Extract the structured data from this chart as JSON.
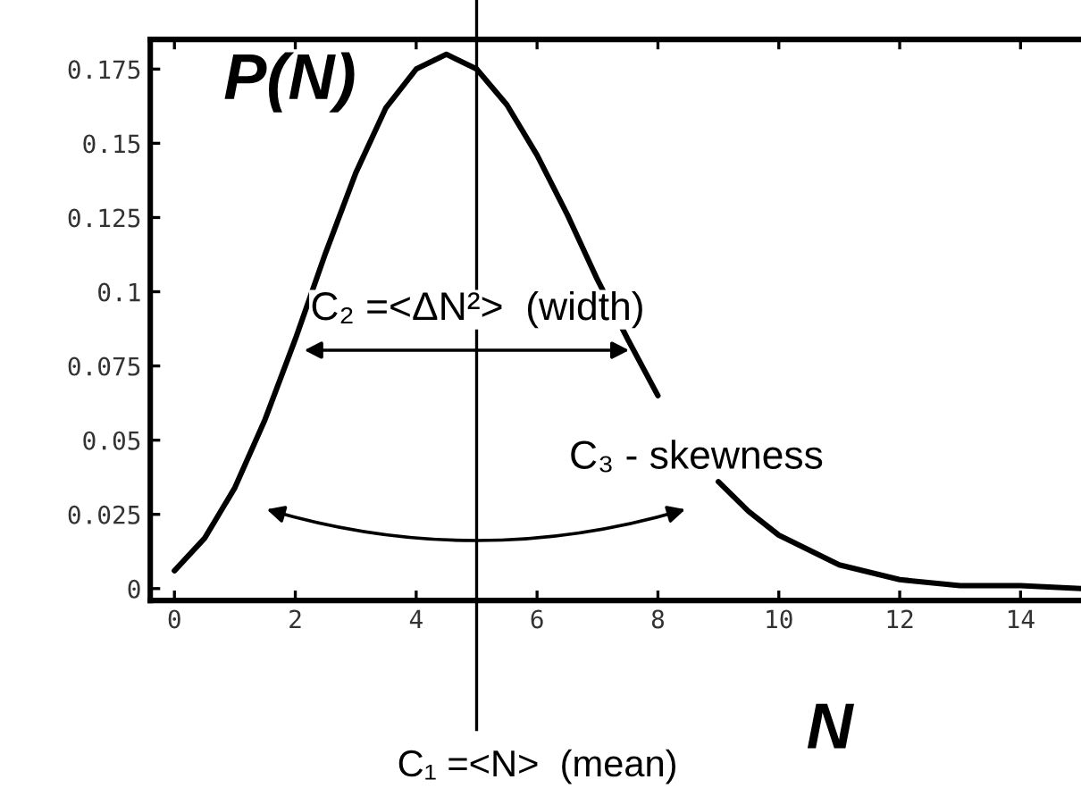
{
  "chart_data": {
    "type": "line",
    "xlabel": "N",
    "ylabel": "P(N)",
    "x": [
      0,
      0.5,
      1,
      1.5,
      2,
      2.5,
      3,
      3.5,
      4,
      4.5,
      5,
      5.5,
      6,
      6.5,
      7,
      7.5,
      8,
      8.5,
      9,
      9.5,
      10,
      11,
      12,
      13,
      14,
      15
    ],
    "series": [
      {
        "color": "#000000",
        "values": [
          0.006,
          0.017,
          0.034,
          0.057,
          0.084,
          0.113,
          0.14,
          0.162,
          0.175,
          0.18,
          0.175,
          0.163,
          0.146,
          0.126,
          0.104,
          0.084,
          0.065,
          null,
          0.036,
          0.026,
          0.018,
          0.008,
          0.003,
          0.001,
          0.001,
          0.0
        ]
      }
    ],
    "xlim": [
      -0.4,
      15
    ],
    "ylim": [
      -0.004,
      0.185
    ],
    "xticks": [
      0,
      2,
      4,
      6,
      8,
      10,
      12,
      14
    ],
    "yticks": [
      0,
      0.025,
      0.05,
      0.075,
      0.1,
      0.125,
      0.15,
      0.175
    ],
    "grid": false,
    "marker": "none",
    "line_style": "solid",
    "ref_lines": [
      {
        "axis": "x",
        "value": 5,
        "label": "C₁ =<N>  (mean)"
      }
    ],
    "annotations": [
      "C₂ =<ΔN²>  (width)",
      "C₃ - skewness"
    ]
  }
}
